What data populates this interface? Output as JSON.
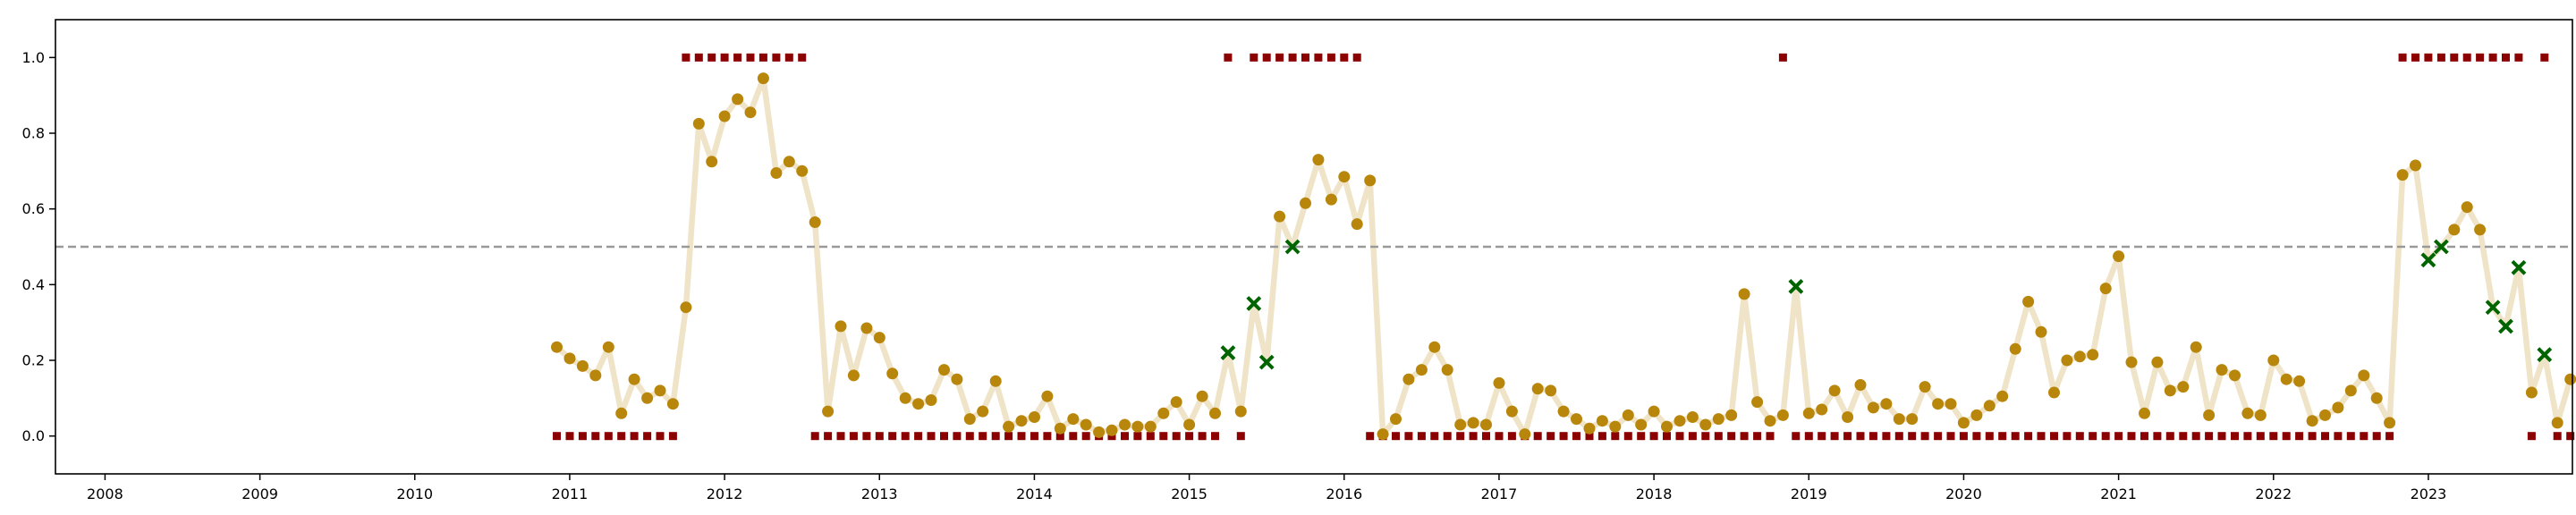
{
  "chart_data": {
    "type": "scatter",
    "title": "",
    "xlabel": "",
    "ylabel": "",
    "xlim": [
      2007.68,
      2023.93
    ],
    "ylim": [
      -0.1,
      1.1
    ],
    "x_ticks": [
      2008,
      2009,
      2010,
      2011,
      2012,
      2013,
      2014,
      2015,
      2016,
      2017,
      2018,
      2019,
      2020,
      2021,
      2022,
      2023
    ],
    "x_tick_labels": [
      "2008",
      "2009",
      "2010",
      "2011",
      "2012",
      "2013",
      "2014",
      "2015",
      "2016",
      "2017",
      "2018",
      "2019",
      "2020",
      "2021",
      "2022",
      "2023"
    ],
    "y_ticks": [
      0.0,
      0.2,
      0.4,
      0.6,
      0.8,
      1.0
    ],
    "y_tick_labels": [
      "0.0",
      "0.2",
      "0.4",
      "0.6",
      "0.8",
      "1.0"
    ],
    "threshold": 0.5,
    "grid": false,
    "x_start": 2010.917,
    "x_step": 0.08333,
    "probability": [
      0.235,
      0.205,
      0.185,
      0.16,
      0.235,
      0.06,
      0.15,
      0.1,
      0.12,
      0.085,
      0.34,
      0.825,
      0.725,
      0.845,
      0.89,
      0.855,
      0.945,
      0.695,
      0.725,
      0.7,
      0.565,
      0.065,
      0.29,
      0.16,
      0.285,
      0.26,
      0.165,
      0.1,
      0.085,
      0.095,
      0.175,
      0.15,
      0.045,
      0.065,
      0.145,
      0.025,
      0.04,
      0.05,
      0.105,
      0.02,
      0.045,
      0.03,
      0.01,
      0.015,
      0.03,
      0.025,
      0.025,
      0.06,
      0.09,
      0.03,
      0.105,
      0.06,
      0.22,
      0.065,
      0.35,
      0.195,
      0.58,
      0.5,
      0.615,
      0.73,
      0.625,
      0.685,
      0.56,
      0.675,
      0.005,
      0.045,
      0.15,
      0.175,
      0.235,
      0.175,
      0.03,
      0.035,
      0.03,
      0.14,
      0.065,
      0.005,
      0.125,
      0.12,
      0.065,
      0.045,
      0.02,
      0.04,
      0.025,
      0.055,
      0.03,
      0.065,
      0.025,
      0.04,
      0.05,
      0.03,
      0.045,
      0.055,
      0.375,
      0.09,
      0.04,
      0.055,
      0.395,
      0.06,
      0.07,
      0.12,
      0.05,
      0.135,
      0.075,
      0.085,
      0.045,
      0.045,
      0.13,
      0.085,
      0.085,
      0.035,
      0.055,
      0.08,
      0.105,
      0.23,
      0.355,
      0.275,
      0.115,
      0.2,
      0.21,
      0.215,
      0.39,
      0.475,
      0.195,
      0.06,
      0.195,
      0.12,
      0.13,
      0.235,
      0.055,
      0.175,
      0.16,
      0.06,
      0.055,
      0.2,
      0.15,
      0.145,
      0.04,
      0.055,
      0.075,
      0.12,
      0.16,
      0.1,
      0.035,
      0.69,
      0.715,
      0.465,
      0.5,
      0.545,
      0.605,
      0.545,
      0.34,
      0.29,
      0.445,
      0.115,
      0.215,
      0.035,
      0.15
    ],
    "markers": [
      "o",
      "o",
      "o",
      "o",
      "o",
      "o",
      "o",
      "o",
      "o",
      "o",
      "o",
      "o",
      "o",
      "o",
      "o",
      "o",
      "o",
      "o",
      "o",
      "o",
      "o",
      "o",
      "o",
      "o",
      "o",
      "o",
      "o",
      "o",
      "o",
      "o",
      "o",
      "o",
      "o",
      "o",
      "o",
      "o",
      "o",
      "o",
      "o",
      "o",
      "o",
      "o",
      "o",
      "o",
      "o",
      "o",
      "o",
      "o",
      "o",
      "o",
      "o",
      "o",
      "x",
      "o",
      "x",
      "x",
      "o",
      "x",
      "o",
      "o",
      "o",
      "o",
      "o",
      "o",
      "o",
      "o",
      "o",
      "o",
      "o",
      "o",
      "o",
      "o",
      "o",
      "o",
      "o",
      "o",
      "o",
      "o",
      "o",
      "o",
      "o",
      "o",
      "o",
      "o",
      "o",
      "o",
      "o",
      "o",
      "o",
      "o",
      "o",
      "o",
      "o",
      "o",
      "o",
      "o",
      "x",
      "o",
      "o",
      "o",
      "o",
      "o",
      "o",
      "o",
      "o",
      "o",
      "o",
      "o",
      "o",
      "o",
      "o",
      "o",
      "o",
      "o",
      "o",
      "o",
      "o",
      "o",
      "o",
      "o",
      "o",
      "o",
      "o",
      "o",
      "o",
      "o",
      "o",
      "o",
      "o",
      "o",
      "o",
      "o",
      "o",
      "o",
      "o",
      "o",
      "o",
      "o",
      "o",
      "o",
      "o",
      "o",
      "o",
      "o",
      "o",
      "x",
      "x",
      "o",
      "o",
      "o",
      "x",
      "x",
      "x",
      "o",
      "x",
      "o",
      "o"
    ],
    "label": [
      0,
      0,
      0,
      0,
      0,
      0,
      0,
      0,
      0,
      0,
      1,
      1,
      1,
      1,
      1,
      1,
      1,
      1,
      1,
      1,
      0,
      0,
      0,
      0,
      0,
      0,
      0,
      0,
      0,
      0,
      0,
      0,
      0,
      0,
      0,
      0,
      0,
      0,
      0,
      0,
      0,
      0,
      0,
      0,
      0,
      0,
      0,
      0,
      0,
      0,
      0,
      0,
      1,
      0,
      1,
      1,
      1,
      1,
      1,
      1,
      1,
      1,
      1,
      0,
      0,
      0,
      0,
      0,
      0,
      0,
      0,
      0,
      0,
      0,
      0,
      0,
      0,
      0,
      0,
      0,
      0,
      0,
      0,
      0,
      0,
      0,
      0,
      0,
      0,
      0,
      0,
      0,
      0,
      0,
      0,
      1,
      0,
      0,
      0,
      0,
      0,
      0,
      0,
      0,
      0,
      0,
      0,
      0,
      0,
      0,
      0,
      0,
      0,
      0,
      0,
      0,
      0,
      0,
      0,
      0,
      0,
      0,
      0,
      0,
      0,
      0,
      0,
      0,
      0,
      0,
      0,
      0,
      0,
      0,
      0,
      0,
      0,
      0,
      0,
      0,
      0,
      0,
      0,
      1,
      1,
      1,
      1,
      1,
      1,
      1,
      1,
      1,
      1,
      0,
      1,
      0,
      0
    ],
    "colors": {
      "line": "#f0e4c8",
      "point_correct": "#b8860b",
      "point_misclassified": "#006400",
      "label": "#8b0000",
      "threshold": "#999999",
      "axis": "#000000"
    }
  }
}
